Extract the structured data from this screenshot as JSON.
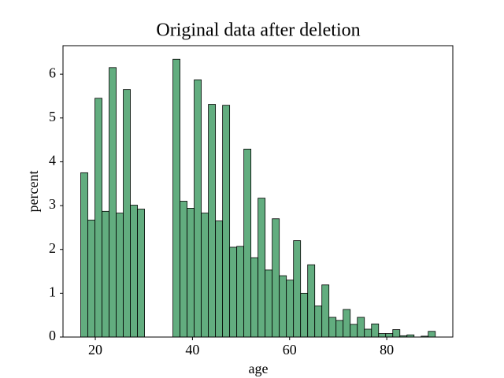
{
  "chart_data": {
    "type": "histogram",
    "title": "Original data after deletion",
    "x_label": "age",
    "y_label": "percent",
    "bins": [
      17,
      18.46,
      19.92,
      21.38,
      22.84,
      24.3,
      25.76,
      27.22,
      28.68,
      30.14,
      31.6,
      33.06,
      34.52,
      35.98,
      37.44,
      38.9,
      40.36,
      41.82,
      43.28,
      44.74,
      46.2,
      47.66,
      49.12,
      50.58,
      52.04,
      53.5,
      54.96,
      56.42,
      57.88,
      59.34,
      60.8,
      62.26,
      63.72,
      65.18,
      66.64,
      68.1,
      69.56,
      71.02,
      72.48,
      73.94,
      75.4,
      76.86,
      78.32,
      79.78,
      81.24,
      82.7,
      84.16,
      85.62,
      87.08,
      88.54,
      90
    ],
    "values": [
      3.75,
      2.67,
      5.45,
      2.87,
      6.15,
      2.83,
      5.65,
      3.01,
      2.92,
      0,
      0,
      0,
      0,
      6.34,
      3.1,
      2.94,
      5.87,
      2.83,
      5.31,
      2.65,
      5.29,
      2.05,
      2.07,
      4.29,
      1.81,
      3.17,
      1.53,
      2.7,
      1.4,
      1.3,
      2.2,
      1.0,
      1.65,
      0.71,
      1.19,
      0.45,
      0.38,
      0.63,
      0.29,
      0.45,
      0.18,
      0.3,
      0.08,
      0.08,
      0.17,
      0.03,
      0.05,
      0,
      0.02,
      0.13
    ],
    "color": "#62ad7f",
    "edgecolor": "#000000",
    "xlim": [
      13.35,
      93.6
    ],
    "xticks": [
      20,
      40,
      60,
      80
    ],
    "ylim": [
      0,
      6.65
    ],
    "yticks": [
      0,
      1,
      2,
      3,
      4,
      5,
      6
    ]
  }
}
